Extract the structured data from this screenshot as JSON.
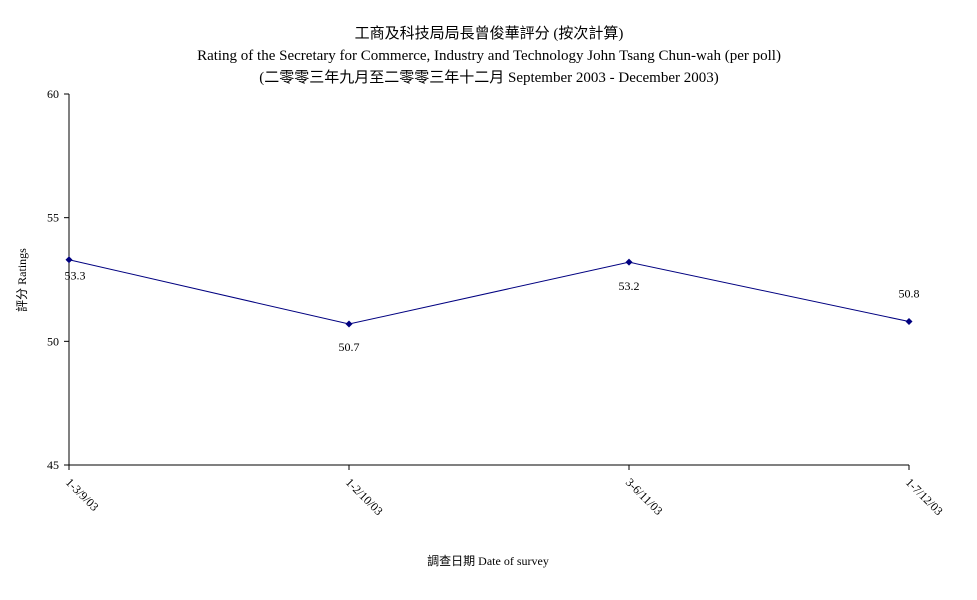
{
  "chart_data": {
    "type": "line",
    "title": "工商及科技局局長曾俊華評分 (按次計算)",
    "subtitle": "Rating of the Secretary for Commerce, Industry and Technology John Tsang Chun-wah  (per poll)",
    "subtitle2": "(二零零三年九月至二零零三年十二月  September 2003 - December 2003)",
    "xlabel": "調查日期 Date of survey",
    "ylabel": "評分 Ratings",
    "categories": [
      "1-3/9/03",
      "1-2/10/03",
      "3-6/11/03",
      "1-7/12/03"
    ],
    "series": [
      {
        "values": [
          53.3,
          50.7,
          53.2,
          50.8
        ],
        "labels": [
          "53.3",
          "50.7",
          "53.2",
          "50.8"
        ],
        "color": "#000080"
      }
    ],
    "ylim": [
      45,
      60
    ],
    "yticks": [
      45,
      50,
      55,
      60
    ],
    "grid": false,
    "legend": "none"
  }
}
